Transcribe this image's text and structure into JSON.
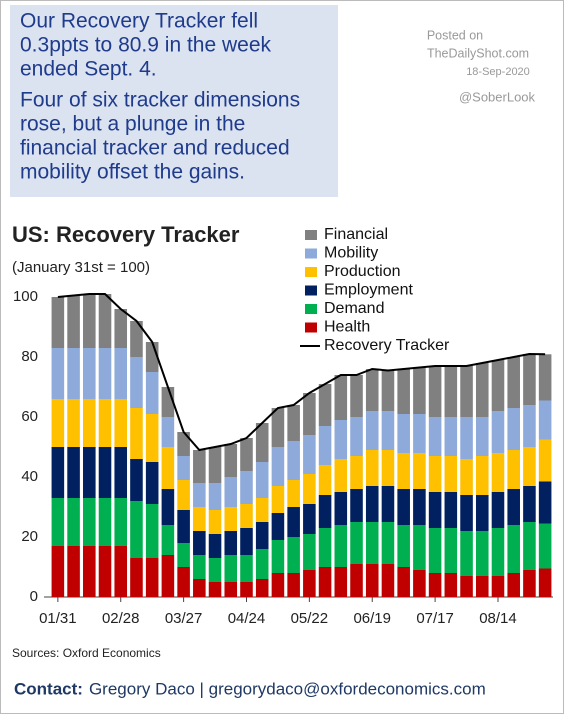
{
  "header": {
    "lines": [
      "Our Recovery Tracker fell",
      "0.3ppts to 80.9 in the week",
      "ended Sept. 4.",
      "Four of six tracker dimensions",
      "rose, but a plunge in the",
      "financial tracker and reduced",
      "mobility offset the gains."
    ],
    "posted": [
      "Posted on",
      "TheDailyShot.com",
      "18-Sep-2020"
    ],
    "handle": "@SoberLook"
  },
  "chart_data": {
    "type": "bar",
    "stacked": true,
    "title": "US: Recovery Tracker",
    "subtitle": "(January 31st = 100)",
    "categories": [
      "01/31",
      null,
      null,
      null,
      "02/28",
      null,
      null,
      null,
      "03/27",
      null,
      null,
      null,
      "04/24",
      null,
      null,
      null,
      "05/22",
      null,
      null,
      null,
      "06/19",
      null,
      null,
      null,
      "07/17",
      null,
      null,
      null,
      "08/14",
      null,
      null,
      null
    ],
    "series": [
      {
        "name": "Health",
        "color": "#c00000",
        "values": [
          17,
          17,
          17,
          17,
          17,
          13,
          13,
          14,
          10,
          6,
          5,
          5,
          5,
          6,
          8,
          8,
          9,
          10,
          10,
          11,
          11,
          11,
          10,
          9,
          8,
          8,
          7,
          7,
          7,
          8,
          9,
          9.5
        ]
      },
      {
        "name": "Demand",
        "color": "#00b050",
        "values": [
          16,
          16,
          16,
          16,
          16,
          19,
          18,
          10,
          8,
          8,
          8,
          9,
          9,
          10,
          11,
          12,
          12,
          13,
          14,
          14,
          14,
          14,
          14,
          15,
          15,
          15,
          15,
          15,
          16,
          16,
          16,
          15
        ]
      },
      {
        "name": "Employment",
        "color": "#002060",
        "values": [
          17,
          17,
          17,
          17,
          17,
          14,
          14,
          12,
          11,
          8,
          8,
          8,
          9,
          9,
          9,
          10,
          10,
          11,
          11,
          11,
          12,
          12,
          12,
          12,
          12,
          12,
          12,
          12,
          12,
          12,
          12,
          14
        ]
      },
      {
        "name": "Production",
        "color": "#ffc000",
        "values": [
          16,
          16,
          16,
          16,
          16,
          17,
          16,
          14,
          10,
          8,
          8,
          8,
          8,
          8,
          9,
          9,
          10,
          10,
          11,
          11,
          12,
          12,
          12,
          12,
          12,
          12,
          12,
          13,
          13,
          13,
          13,
          14
        ]
      },
      {
        "name": "Mobility",
        "color": "#8eaadb",
        "values": [
          17,
          17,
          17,
          17,
          17,
          17,
          14,
          10,
          8,
          8,
          9,
          10,
          11,
          12,
          13,
          13,
          13,
          13,
          13,
          13,
          13,
          13,
          13,
          13,
          13,
          13,
          14,
          13,
          14,
          14,
          14,
          13
        ]
      },
      {
        "name": "Financial",
        "color": "#808080",
        "values": [
          17,
          17.5,
          18,
          18,
          13,
          12,
          10,
          10,
          8,
          11,
          12,
          11,
          11,
          13,
          13,
          12,
          14,
          14,
          15,
          14,
          14,
          13.5,
          15,
          15.5,
          17,
          17,
          17,
          18,
          17,
          17,
          17,
          15.4
        ]
      },
      {
        "name": "Recovery Tracker",
        "type": "line",
        "color": "#000000",
        "values": [
          100,
          100.5,
          101,
          101,
          96,
          92,
          85,
          70,
          55,
          49,
          50,
          51,
          53,
          58,
          63,
          64,
          68,
          71,
          74,
          74,
          76,
          75.5,
          76,
          76.5,
          77,
          77,
          77,
          78,
          79,
          80,
          81,
          80.9
        ]
      }
    ],
    "ylim": [
      0,
      102
    ],
    "yticks": [
      0,
      20,
      40,
      60,
      80,
      100
    ],
    "grid": false,
    "legend": "top-right",
    "source": "Sources: Oxford Economics"
  },
  "footer": {
    "label": "Contact:",
    "text": "Gregory Daco | gregorydaco@oxfordeconomics.com"
  }
}
